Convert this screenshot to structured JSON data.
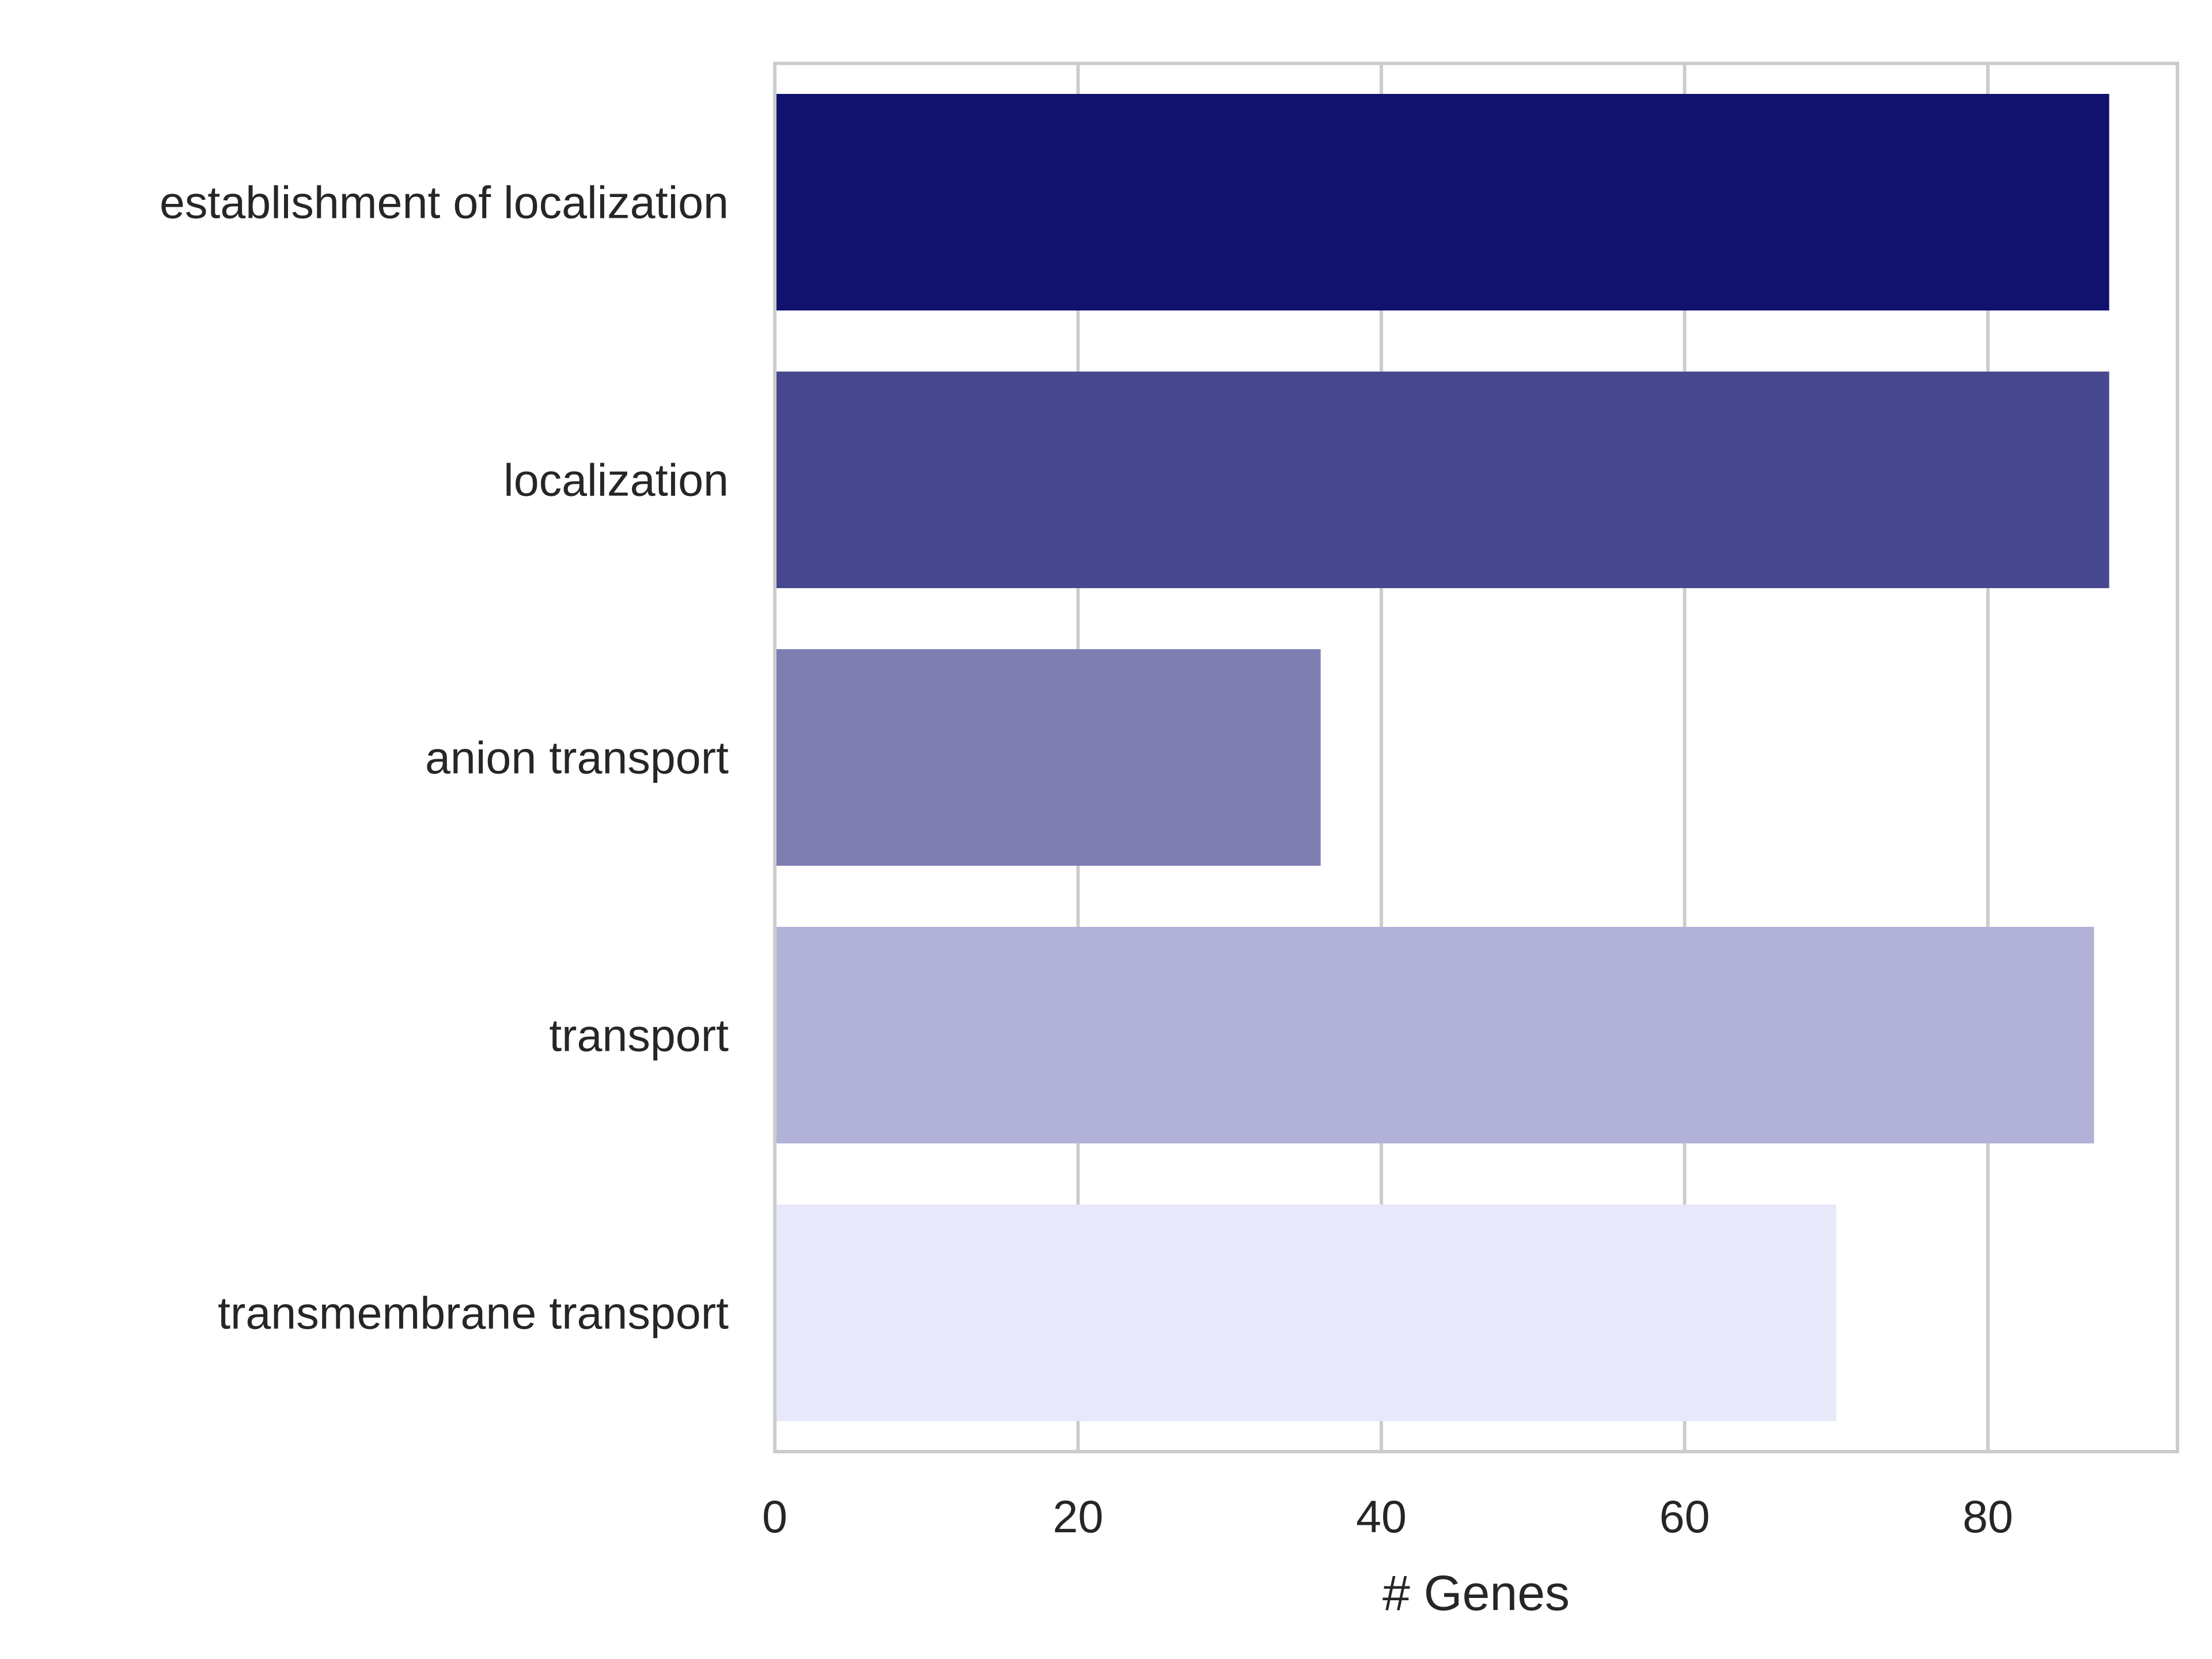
{
  "chart_data": {
    "type": "bar",
    "orientation": "horizontal",
    "categories": [
      "establishment of localization",
      "localization",
      "anion transport",
      "transport",
      "transmembrane transport"
    ],
    "values": [
      88,
      88,
      36,
      87,
      70
    ],
    "colors": [
      "#10126e",
      "#484890",
      "#7f7eb3",
      "#b2b2d8",
      "#e7e9fa"
    ],
    "xlabel": "# Genes",
    "ylabel": "",
    "title": "",
    "xlim": [
      0,
      92.5
    ],
    "xticks": [
      0,
      20,
      40,
      60,
      80
    ],
    "grid": true
  }
}
